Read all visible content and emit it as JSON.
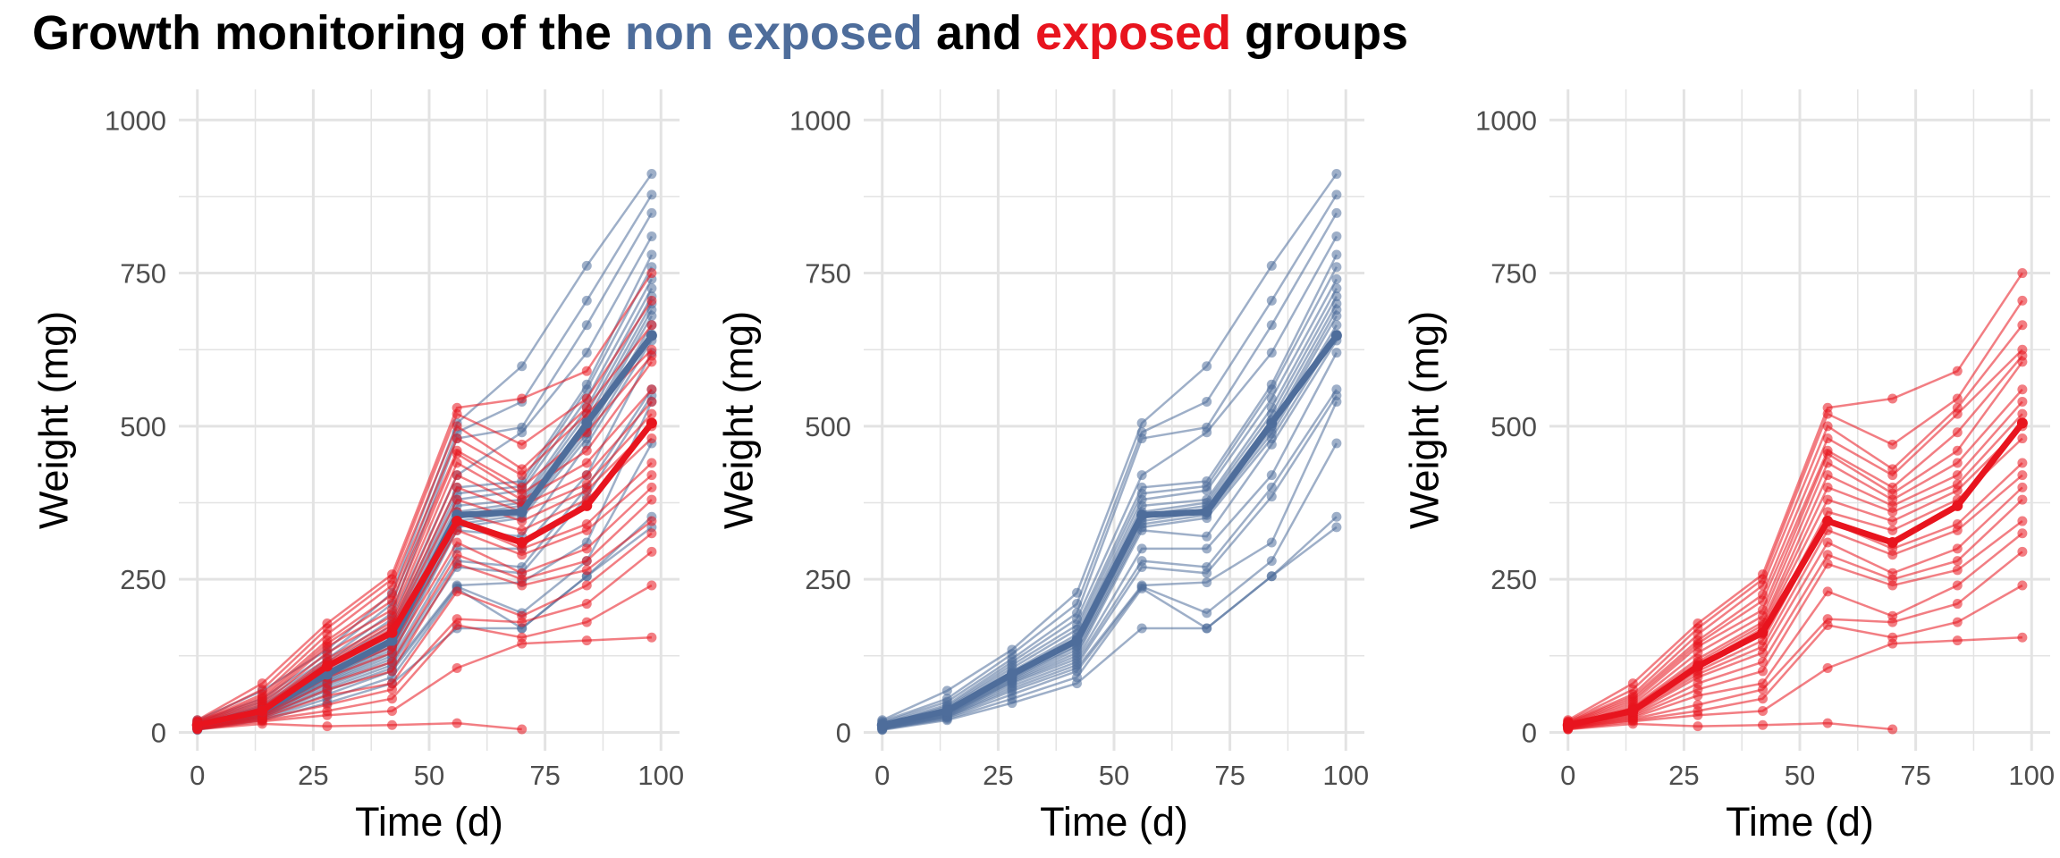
{
  "title": {
    "part1": "Growth monitoring of the ",
    "part2": "non exposed",
    "part3": " and ",
    "part4": "exposed",
    "part5": " groups"
  },
  "colors": {
    "non_exposed": "#4e6d9b",
    "exposed": "#e8141e",
    "grid": "#e3e3e3"
  },
  "chart_data": [
    {
      "type": "line",
      "panel": "left",
      "groups_shown": [
        "non_exposed",
        "exposed"
      ],
      "xlabel": "Time (d)",
      "ylabel": "Weight (mg)",
      "xlim": [
        -4,
        104
      ],
      "ylim": [
        -30,
        1050
      ],
      "x_ticks": [
        0,
        25,
        50,
        75,
        100
      ],
      "y_ticks": [
        0,
        250,
        500,
        750,
        1000
      ],
      "grid": true,
      "legend": "none"
    },
    {
      "type": "line",
      "panel": "middle",
      "groups_shown": [
        "non_exposed"
      ],
      "xlabel": "Time (d)",
      "ylabel": "Weight (mg)",
      "xlim": [
        -4,
        104
      ],
      "ylim": [
        -30,
        1050
      ],
      "x_ticks": [
        0,
        25,
        50,
        75,
        100
      ],
      "y_ticks": [
        0,
        250,
        500,
        750,
        1000
      ],
      "grid": true,
      "legend": "none"
    },
    {
      "type": "line",
      "panel": "right",
      "groups_shown": [
        "exposed"
      ],
      "xlabel": "Time (d)",
      "ylabel": "Weight (mg)",
      "xlim": [
        -4,
        104
      ],
      "ylim": [
        -30,
        1050
      ],
      "x_ticks": [
        0,
        25,
        50,
        75,
        100
      ],
      "y_ticks": [
        0,
        250,
        500,
        750,
        1000
      ],
      "grid": true,
      "legend": "none"
    }
  ],
  "series": {
    "x": [
      0,
      14,
      28,
      42,
      56,
      70,
      84,
      98
    ],
    "non_exposed_mean": [
      12,
      35,
      95,
      150,
      355,
      360,
      505,
      648
    ],
    "exposed_mean": [
      12,
      35,
      108,
      163,
      345,
      310,
      370,
      505
    ],
    "non_exposed": [
      [
        20,
        68,
        135,
        228,
        505,
        598,
        762,
        912
      ],
      [
        18,
        55,
        128,
        210,
        490,
        540,
        705,
        878
      ],
      [
        16,
        50,
        120,
        195,
        480,
        498,
        665,
        848
      ],
      [
        14,
        45,
        115,
        185,
        420,
        490,
        620,
        810
      ],
      [
        13,
        42,
        110,
        175,
        400,
        410,
        568,
        780
      ],
      [
        12,
        40,
        105,
        168,
        390,
        402,
        560,
        760
      ],
      [
        12,
        38,
        100,
        160,
        380,
        395,
        545,
        740
      ],
      [
        11,
        36,
        98,
        155,
        370,
        380,
        530,
        725
      ],
      [
        11,
        35,
        95,
        150,
        360,
        375,
        520,
        712
      ],
      [
        10,
        34,
        92,
        146,
        355,
        370,
        510,
        700
      ],
      [
        10,
        33,
        90,
        142,
        350,
        365,
        500,
        690
      ],
      [
        9,
        32,
        88,
        140,
        345,
        360,
        495,
        680
      ],
      [
        9,
        31,
        86,
        135,
        340,
        355,
        488,
        665
      ],
      [
        8,
        30,
        84,
        130,
        335,
        350,
        480,
        650
      ],
      [
        8,
        29,
        82,
        125,
        330,
        320,
        470,
        640
      ],
      [
        7,
        28,
        80,
        120,
        300,
        300,
        420,
        620
      ],
      [
        7,
        27,
        76,
        115,
        280,
        270,
        400,
        560
      ],
      [
        6,
        26,
        72,
        110,
        270,
        260,
        385,
        550
      ],
      [
        6,
        25,
        68,
        105,
        240,
        245,
        310,
        540
      ],
      [
        5,
        24,
        62,
        100,
        238,
        195,
        280,
        472
      ],
      [
        5,
        22,
        55,
        90,
        235,
        170,
        255,
        352
      ],
      [
        4,
        20,
        48,
        80,
        170,
        170,
        255,
        335
      ]
    ],
    "exposed": [
      [
        20,
        80,
        178,
        258,
        530,
        545,
        590,
        750
      ],
      [
        18,
        70,
        170,
        250,
        520,
        470,
        545,
        705
      ],
      [
        17,
        62,
        160,
        240,
        500,
        430,
        530,
        665
      ],
      [
        16,
        58,
        150,
        225,
        480,
        420,
        520,
        625
      ],
      [
        15,
        54,
        145,
        215,
        460,
        400,
        490,
        615
      ],
      [
        14,
        50,
        140,
        200,
        455,
        390,
        460,
        605
      ],
      [
        13,
        46,
        130,
        190,
        440,
        380,
        440,
        560
      ],
      [
        12,
        42,
        120,
        180,
        420,
        370,
        420,
        540
      ],
      [
        11,
        40,
        115,
        175,
        400,
        360,
        405,
        520
      ],
      [
        11,
        38,
        110,
        170,
        380,
        345,
        395,
        500
      ],
      [
        10,
        36,
        105,
        160,
        360,
        330,
        380,
        480
      ],
      [
        10,
        34,
        100,
        150,
        345,
        300,
        340,
        440
      ],
      [
        9,
        32,
        95,
        140,
        330,
        290,
        330,
        420
      ],
      [
        9,
        30,
        90,
        130,
        310,
        260,
        300,
        400
      ],
      [
        8,
        28,
        80,
        115,
        290,
        250,
        280,
        380
      ],
      [
        8,
        26,
        70,
        100,
        275,
        240,
        265,
        345
      ],
      [
        7,
        24,
        60,
        80,
        230,
        190,
        240,
        325
      ],
      [
        7,
        22,
        45,
        70,
        185,
        180,
        210,
        295
      ],
      [
        6,
        20,
        35,
        55,
        175,
        155,
        180,
        240
      ],
      [
        5,
        18,
        28,
        35,
        105,
        145,
        150,
        155
      ],
      [
        5,
        14,
        10,
        12,
        15,
        5,
        null,
        null
      ]
    ]
  }
}
